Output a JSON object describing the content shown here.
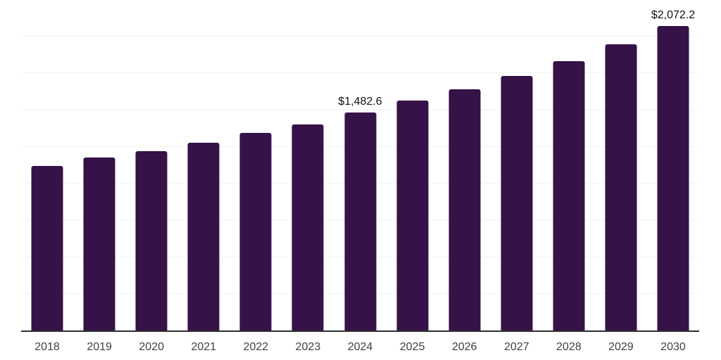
{
  "chart_data": {
    "type": "bar",
    "title": "",
    "xlabel": "",
    "ylabel": "",
    "categories": [
      "2018",
      "2019",
      "2020",
      "2021",
      "2022",
      "2023",
      "2024",
      "2025",
      "2026",
      "2027",
      "2028",
      "2029",
      "2030"
    ],
    "values": [
      1120,
      1178,
      1222,
      1278,
      1345,
      1402,
      1482.6,
      1565,
      1642,
      1733,
      1833,
      1948,
      2072.2
    ],
    "data_labels": [
      "",
      "",
      "",
      "",
      "",
      "",
      "$1,482.6",
      "",
      "",
      "",
      "",
      "",
      "$2,072.2"
    ],
    "ylim": [
      0,
      2250
    ],
    "gridline_step": 250,
    "grid": true,
    "legend": false,
    "colors": {
      "bar": "#351248",
      "axis_line": "#2f2f2f",
      "gridline": "#f2f2f2",
      "data_label": "#111111",
      "tick_label": "#404040",
      "background": "#ffffff"
    }
  }
}
